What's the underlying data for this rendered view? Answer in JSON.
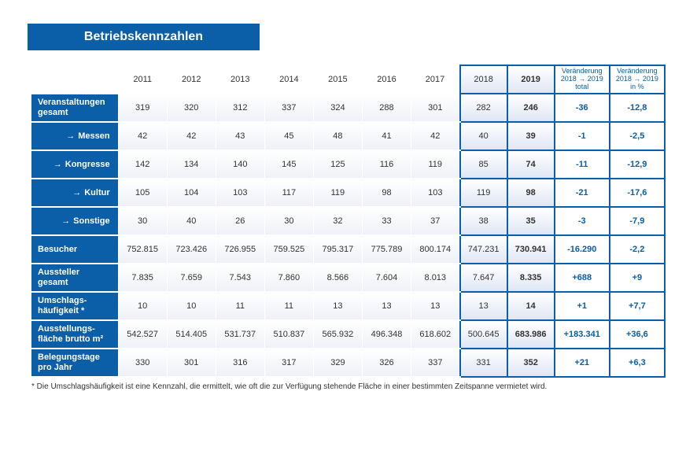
{
  "title": "Betriebskennzahlen",
  "years": [
    "2011",
    "2012",
    "2013",
    "2014",
    "2015",
    "2016",
    "2017"
  ],
  "hl_years": [
    "2018",
    "2019"
  ],
  "chg_headers": {
    "total": "Veränderung\n2018 → 2019\ntotal",
    "pct": "Veränderung\n2018 → 2019\nin %"
  },
  "rows": [
    {
      "label": "Veranstaltungen gesamt",
      "sub": false,
      "vals": [
        "319",
        "320",
        "312",
        "337",
        "324",
        "288",
        "301"
      ],
      "hl": [
        "282",
        "246"
      ],
      "chg": [
        "-36",
        "-12,8"
      ]
    },
    {
      "label": "Messen",
      "sub": true,
      "vals": [
        "42",
        "42",
        "43",
        "45",
        "48",
        "41",
        "42"
      ],
      "hl": [
        "40",
        "39"
      ],
      "chg": [
        "-1",
        "-2,5"
      ]
    },
    {
      "label": "Kongresse",
      "sub": true,
      "vals": [
        "142",
        "134",
        "140",
        "145",
        "125",
        "116",
        "119"
      ],
      "hl": [
        "85",
        "74"
      ],
      "chg": [
        "-11",
        "-12,9"
      ]
    },
    {
      "label": "Kultur",
      "sub": true,
      "vals": [
        "105",
        "104",
        "103",
        "117",
        "119",
        "98",
        "103"
      ],
      "hl": [
        "119",
        "98"
      ],
      "chg": [
        "-21",
        "-17,6"
      ]
    },
    {
      "label": "Sonstige",
      "sub": true,
      "vals": [
        "30",
        "40",
        "26",
        "30",
        "32",
        "33",
        "37"
      ],
      "hl": [
        "38",
        "35"
      ],
      "chg": [
        "-3",
        "-7,9"
      ]
    },
    {
      "label": "Besucher",
      "sub": false,
      "vals": [
        "752.815",
        "723.426",
        "726.955",
        "759.525",
        "795.317",
        "775.789",
        "800.174"
      ],
      "hl": [
        "747.231",
        "730.941"
      ],
      "chg": [
        "-16.290",
        "-2,2"
      ]
    },
    {
      "label": "Aussteller gesamt",
      "sub": false,
      "vals": [
        "7.835",
        "7.659",
        "7.543",
        "7.860",
        "8.566",
        "7.604",
        "8.013"
      ],
      "hl": [
        "7.647",
        "8.335"
      ],
      "chg": [
        "+688",
        "+9"
      ]
    },
    {
      "label": "Umschlags-häufigkeit *",
      "sub": false,
      "vals": [
        "10",
        "10",
        "11",
        "11",
        "13",
        "13",
        "13"
      ],
      "hl": [
        "13",
        "14"
      ],
      "chg": [
        "+1",
        "+7,7"
      ]
    },
    {
      "label": "Ausstellungs-fläche brutto m²",
      "sub": false,
      "vals": [
        "542.527",
        "514.405",
        "531.737",
        "510.837",
        "565.932",
        "496.348",
        "618.602"
      ],
      "hl": [
        "500.645",
        "683.986"
      ],
      "chg": [
        "+183.341",
        "+36,6"
      ]
    },
    {
      "label": "Belegungstage pro Jahr",
      "sub": false,
      "vals": [
        "330",
        "301",
        "316",
        "317",
        "329",
        "326",
        "337"
      ],
      "hl": [
        "331",
        "352"
      ],
      "chg": [
        "+21",
        "+6,3"
      ]
    }
  ],
  "footnote": "* Die Umschlagshäufigkeit ist eine Kennzahl, die ermittelt, wie oft die zur Verfügung stehende Fläche in einer bestimmten Zeitspanne vermietet wird.",
  "colors": {
    "brand": "#0b5ea8",
    "grad_light_end": "#eef1f8",
    "grad_hl_end": "#dfe6f4"
  }
}
